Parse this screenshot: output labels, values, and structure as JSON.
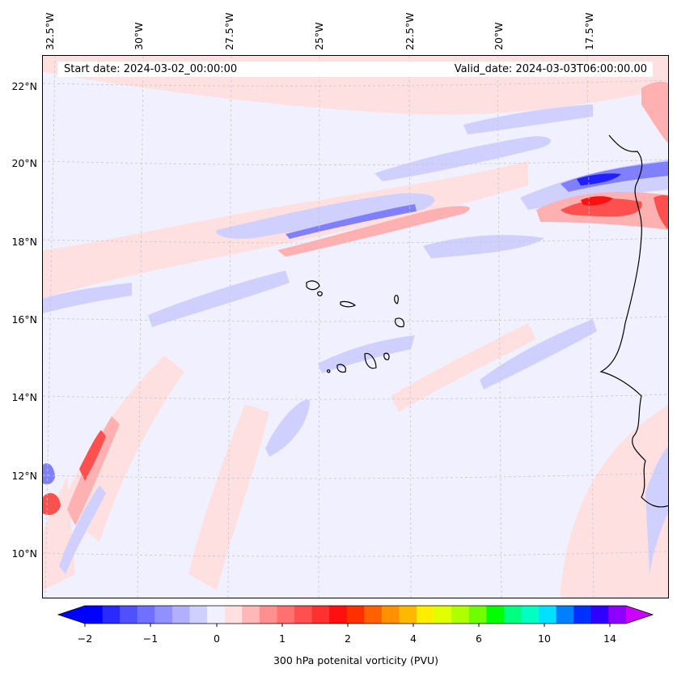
{
  "header": {
    "start_date": "Start date: 2024-03-02_00:00:00",
    "valid_date": "Valid_date: 2024-03-03T06:00:00.00"
  },
  "map": {
    "longitude_labels": [
      "32.5°W",
      "30°W",
      "27.5°W",
      "25°W",
      "22.5°W",
      "20°W",
      "17.5°W"
    ],
    "latitude_labels": [
      "22°N",
      "20°N",
      "18°N",
      "16°N",
      "14°N",
      "12°N",
      "10°N"
    ],
    "lon_range": [
      -33.3,
      -15.6
    ],
    "lat_range": [
      8.9,
      22.8
    ],
    "field_colors": {
      "background": "#f0f0ff",
      "light_pink": "#ffe0e0",
      "pink": "#ffb0b0",
      "red": "#ff5050",
      "strong_red": "#ff1010",
      "light_blue": "#d0d0ff",
      "blue": "#8080ff",
      "deep_blue": "#2020ff"
    },
    "coastline_color": "#000000",
    "gridline_color": "#c8c8c8"
  },
  "colorbar": {
    "title": "300 hPa potenital vorticity (PVU)",
    "tick_labels": [
      "−2",
      "−1",
      "0",
      "1",
      "2",
      "4",
      "6",
      "10",
      "14"
    ],
    "colors": [
      "#0000ff",
      "#2a2aff",
      "#5050ff",
      "#7070ff",
      "#9090ff",
      "#b0b0ff",
      "#d0d0ff",
      "#f0f0ff",
      "#ffe0e0",
      "#ffb8b8",
      "#ff9090",
      "#ff7070",
      "#ff5050",
      "#ff3030",
      "#ff1010",
      "#ff3000",
      "#ff6000",
      "#ff9000",
      "#ffb800",
      "#ffee00",
      "#e0ff00",
      "#b0ff00",
      "#70ff00",
      "#00ff00",
      "#00ff80",
      "#00ffc0",
      "#00e0ff",
      "#0080ff",
      "#0030ff",
      "#3000ff",
      "#9000ff"
    ],
    "extend_min_color": "#0000ff",
    "extend_max_color": "#cc00ff"
  }
}
